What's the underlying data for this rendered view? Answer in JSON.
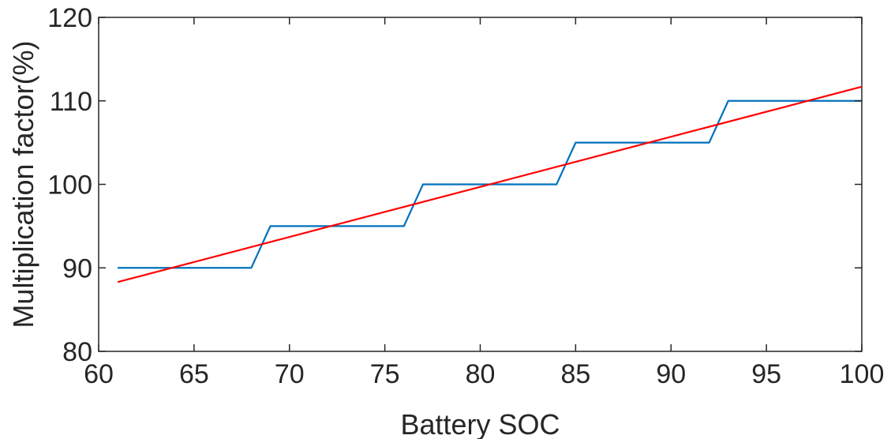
{
  "chart_data": {
    "type": "line",
    "title": "",
    "xlabel": "Battery SOC",
    "ylabel": "Multiplication factor(%)",
    "xlim": [
      60,
      100
    ],
    "ylim": [
      80,
      120
    ],
    "xticks": [
      60,
      65,
      70,
      75,
      80,
      85,
      90,
      95,
      100
    ],
    "yticks": [
      80,
      90,
      100,
      110,
      120
    ],
    "grid": false,
    "series": [
      {
        "color": "#0072BD",
        "x": [
          61,
          68,
          69,
          76,
          77,
          84,
          85,
          92,
          93,
          100
        ],
        "y": [
          90,
          90,
          95,
          95,
          100,
          100,
          105,
          105,
          110,
          110
        ]
      },
      {
        "color": "#FF0000",
        "x": [
          61,
          100
        ],
        "y": [
          88.3,
          111.7
        ]
      }
    ]
  }
}
